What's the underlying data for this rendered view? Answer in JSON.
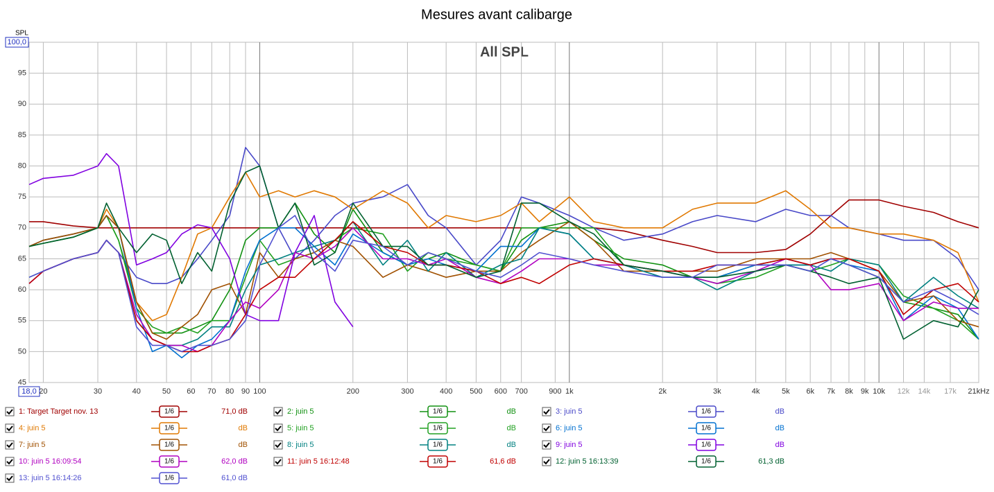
{
  "chart_data": {
    "type": "line",
    "title": "Mesures avant calibarge",
    "subtitle": "All SPL",
    "y_label": "SPL",
    "log_x": true,
    "grid": true,
    "xlim": [
      18,
      21000
    ],
    "ylim": [
      45,
      100
    ],
    "xticks": [
      {
        "value": 18,
        "label": "18,0"
      },
      20,
      30,
      40,
      50,
      60,
      70,
      80,
      90,
      100,
      200,
      300,
      400,
      500,
      600,
      700,
      900,
      {
        "value": 1000,
        "label": "1k"
      },
      {
        "value": 2000,
        "label": "2k"
      },
      {
        "value": 3000,
        "label": "3k"
      },
      {
        "value": 4000,
        "label": "4k"
      },
      {
        "value": 5000,
        "label": "5k"
      },
      {
        "value": 6000,
        "label": "6k"
      },
      {
        "value": 7000,
        "label": "7k"
      },
      {
        "value": 8000,
        "label": "8k"
      },
      {
        "value": 9000,
        "label": "9k"
      },
      {
        "value": 10000,
        "label": "10k"
      },
      {
        "value": 12000,
        "label": "12k"
      },
      {
        "value": 14000,
        "label": "14k"
      },
      {
        "value": 17000,
        "label": "17k"
      },
      {
        "value": 21000,
        "label": "21kHz"
      }
    ],
    "yticks": [
      45,
      50,
      55,
      60,
      65,
      70,
      75,
      80,
      85,
      90,
      95,
      {
        "value": 100,
        "label": "100,0"
      }
    ],
    "x": [
      18,
      20,
      25,
      30,
      32,
      35,
      40,
      45,
      50,
      56,
      63,
      70,
      80,
      90,
      100,
      115,
      130,
      150,
      175,
      200,
      250,
      300,
      350,
      400,
      500,
      600,
      700,
      800,
      1000,
      1200,
      1500,
      2000,
      2500,
      3000,
      4000,
      5000,
      6000,
      7000,
      8000,
      10000,
      12000,
      15000,
      18000,
      21000
    ],
    "series": [
      {
        "name": "1: Target Target nov. 13",
        "color": "#a00000",
        "smoothing": "1/6",
        "level": "71,0 dB",
        "values": [
          71,
          71,
          70.3,
          70,
          70,
          70,
          70,
          70,
          70,
          70,
          70,
          70,
          70,
          70,
          70,
          70,
          70,
          70,
          70,
          70,
          70,
          70,
          70,
          70,
          70,
          70,
          70,
          70,
          70,
          70,
          69.5,
          68,
          67,
          66,
          66,
          66.5,
          69,
          72,
          74.5,
          74.5,
          73.5,
          72.5,
          71,
          70
        ]
      },
      {
        "name": "2: juin 5",
        "color": "#109010",
        "smoothing": "1/6",
        "level": "dB",
        "values": [
          67,
          67.5,
          68.5,
          70,
          72,
          68,
          58,
          53,
          53,
          53,
          54,
          55,
          60,
          68,
          70,
          70,
          74,
          69,
          66,
          73,
          66,
          64,
          65,
          66,
          64,
          63,
          68,
          70,
          71,
          68,
          65,
          64,
          62,
          62,
          64,
          65,
          64,
          65,
          64,
          62,
          58,
          57,
          56,
          52
        ]
      },
      {
        "name": "3: juin 5",
        "color": "#4848c8",
        "smoothing": "1/6",
        "level": "dB",
        "values": [
          61,
          63,
          65,
          66,
          68,
          66,
          62,
          61,
          61,
          62,
          65,
          68,
          72,
          83,
          80,
          70,
          65,
          68,
          72,
          74,
          75,
          77,
          72,
          70,
          64,
          68,
          75,
          74,
          72,
          70,
          68,
          69,
          71,
          72,
          71,
          73,
          72,
          72,
          70,
          69,
          68,
          68,
          65,
          60
        ]
      },
      {
        "name": "4: juin 5",
        "color": "#e07800",
        "smoothing": "1/6",
        "level": "dB",
        "values": [
          67,
          68,
          69,
          70,
          73,
          70,
          58,
          55,
          56,
          62,
          69,
          70,
          75,
          79,
          75,
          76,
          75,
          76,
          75,
          73,
          76,
          74,
          70,
          72,
          71,
          72,
          74,
          71,
          75,
          71,
          70,
          70,
          73,
          74,
          74,
          76,
          73,
          70,
          70,
          69,
          69,
          68,
          66,
          58
        ]
      },
      {
        "name": "5: juin 5",
        "color": "#20a020",
        "smoothing": "1/6",
        "level": "dB",
        "values": [
          67,
          67.5,
          68.5,
          70,
          72,
          68,
          57,
          54,
          53,
          54,
          53,
          55,
          55,
          62,
          68,
          64,
          65,
          66,
          68,
          70,
          69,
          63,
          66,
          65,
          64,
          63,
          70,
          70,
          70,
          70,
          64,
          63,
          62,
          61,
          62,
          64,
          63,
          64,
          65,
          64,
          59,
          57,
          55,
          52
        ]
      },
      {
        "name": "6: juin 5",
        "color": "#0070d0",
        "smoothing": "1/6",
        "level": "dB",
        "values": [
          67,
          68,
          69,
          70,
          72,
          70,
          57,
          50,
          51,
          49,
          51,
          52,
          55,
          63,
          68,
          70,
          70,
          67,
          64,
          69,
          66,
          64,
          65,
          64,
          63,
          67,
          67,
          70,
          69,
          65,
          64,
          62,
          62,
          62,
          64,
          64,
          64,
          65,
          64,
          63,
          55,
          59,
          57,
          52
        ]
      },
      {
        "name": "7: juin 5",
        "color": "#a05000",
        "smoothing": "1/6",
        "level": "dB",
        "values": [
          67,
          68,
          69,
          70,
          72,
          70,
          58,
          53,
          52,
          54,
          56,
          60,
          61,
          56,
          66,
          62,
          65,
          66,
          68,
          67,
          62,
          64,
          63,
          62,
          63,
          63,
          66,
          68,
          71,
          68,
          63,
          63,
          63,
          63,
          65,
          65,
          65,
          66,
          65,
          63,
          58,
          59,
          55,
          54
        ]
      },
      {
        "name": "8: juin 5",
        "color": "#008080",
        "smoothing": "1/6",
        "level": "dB",
        "values": [
          62,
          63,
          65,
          66,
          68,
          66,
          55,
          52,
          51,
          51,
          52,
          54,
          54,
          60,
          64,
          65,
          66,
          67,
          68,
          71,
          64,
          68,
          63,
          66,
          62,
          64,
          65,
          70,
          69,
          65,
          64,
          62,
          62,
          60,
          63,
          64,
          64,
          63,
          65,
          64,
          58,
          62,
          59,
          57
        ]
      },
      {
        "name": "9: juin 5",
        "color": "#8000e0",
        "smoothing": "1/6",
        "level": "dB",
        "values": [
          77,
          78,
          78.5,
          80,
          82,
          80,
          64,
          65,
          66,
          69,
          70.5,
          70,
          65,
          56,
          55,
          55,
          66,
          72,
          58,
          54,
          null,
          null,
          null,
          null,
          null,
          null,
          null,
          null,
          null,
          null,
          null,
          null,
          null,
          null,
          null,
          null,
          null,
          null,
          null,
          null,
          null,
          null,
          null,
          null
        ]
      },
      {
        "name": "10: juin 5 16:09:54",
        "color": "#b000c0",
        "smoothing": "1/6",
        "level": "62,0 dB",
        "values": [
          61,
          63,
          65,
          66,
          68,
          66,
          56,
          52,
          51,
          51,
          50,
          51,
          55,
          58,
          57,
          60,
          66,
          65,
          67,
          70,
          65,
          65,
          64,
          65,
          62,
          61,
          63,
          65,
          65,
          64,
          64,
          63,
          62,
          61,
          63,
          65,
          64,
          60,
          60,
          61,
          55,
          58,
          57,
          57
        ]
      },
      {
        "name": "11: juin 5 16:12:48",
        "color": "#c00000",
        "smoothing": "1/6",
        "level": "61,6 dB",
        "values": [
          61,
          63,
          65,
          66,
          68,
          66,
          55,
          52,
          51,
          50,
          50,
          51,
          52,
          56,
          60,
          62,
          62,
          65,
          68,
          71,
          67,
          66,
          64,
          64,
          63,
          61,
          62,
          61,
          64,
          65,
          64,
          63,
          63,
          64,
          64,
          65,
          64,
          65,
          65,
          63,
          56,
          60,
          61,
          58
        ]
      },
      {
        "name": "12: juin 5 16:13:39",
        "color": "#006030",
        "smoothing": "1/6",
        "level": "61,3 dB",
        "values": [
          67,
          67.5,
          68.5,
          70,
          74,
          70,
          66,
          69,
          68,
          61,
          66,
          63,
          74,
          79,
          80,
          70,
          74,
          64,
          66,
          74,
          67,
          67,
          64,
          64,
          62,
          63,
          74,
          74,
          71,
          69,
          64,
          63,
          62,
          62,
          63,
          64,
          63,
          62,
          61,
          62,
          52,
          55,
          54,
          60
        ]
      },
      {
        "name": "13: juin 5 16:14:26",
        "color": "#5050d0",
        "smoothing": "1/6",
        "level": "61,0 dB",
        "values": [
          62,
          63,
          65,
          66,
          68,
          66,
          54,
          51,
          51,
          50,
          51,
          51,
          52,
          55,
          64,
          70,
          72,
          66,
          63,
          68,
          67,
          64,
          66,
          65,
          63,
          62,
          64,
          66,
          65,
          64,
          63,
          62,
          62,
          64,
          64,
          64,
          63,
          65,
          64,
          62,
          58,
          60,
          58,
          56
        ]
      }
    ]
  }
}
